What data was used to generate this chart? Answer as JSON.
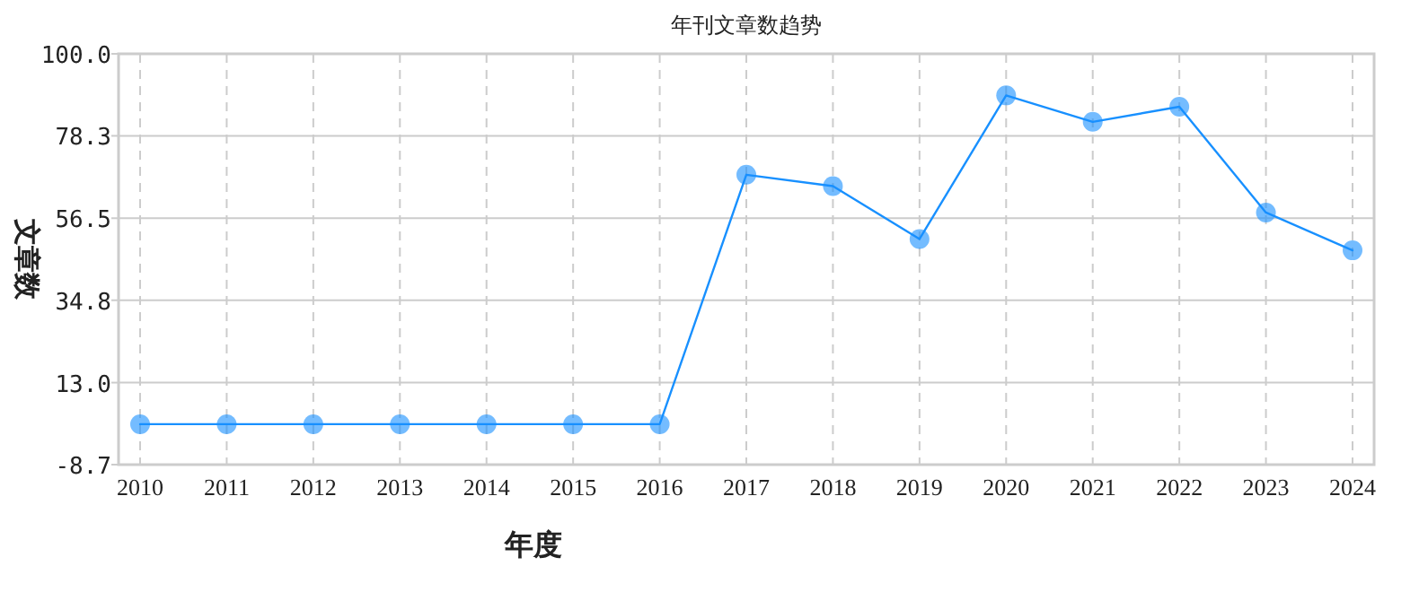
{
  "chart_data": {
    "type": "line",
    "title": "年刊文章数趋势",
    "xlabel": "年度",
    "ylabel": "文章数",
    "categories": [
      "2010",
      "2011",
      "2012",
      "2013",
      "2014",
      "2015",
      "2016",
      "2017",
      "2018",
      "2019",
      "2020",
      "2021",
      "2022",
      "2023",
      "2024"
    ],
    "series": [
      {
        "color": "#1890ff",
        "values": [
          2,
          2,
          2,
          2,
          2,
          2,
          2,
          68,
          65,
          51,
          89,
          82,
          86,
          58,
          48
        ]
      }
    ],
    "ylim": [
      -8.7,
      100
    ],
    "yticks": [
      {
        "value": -8.7,
        "label": "-8.7"
      },
      {
        "value": 13,
        "label": "13.0"
      },
      {
        "value": 34.8,
        "label": "34.8"
      },
      {
        "value": 56.5,
        "label": "56.5"
      },
      {
        "value": 78.3,
        "label": "78.3"
      },
      {
        "value": 100,
        "label": "100.0"
      }
    ],
    "grid": true,
    "marker": "circle",
    "line_style": "solid"
  }
}
